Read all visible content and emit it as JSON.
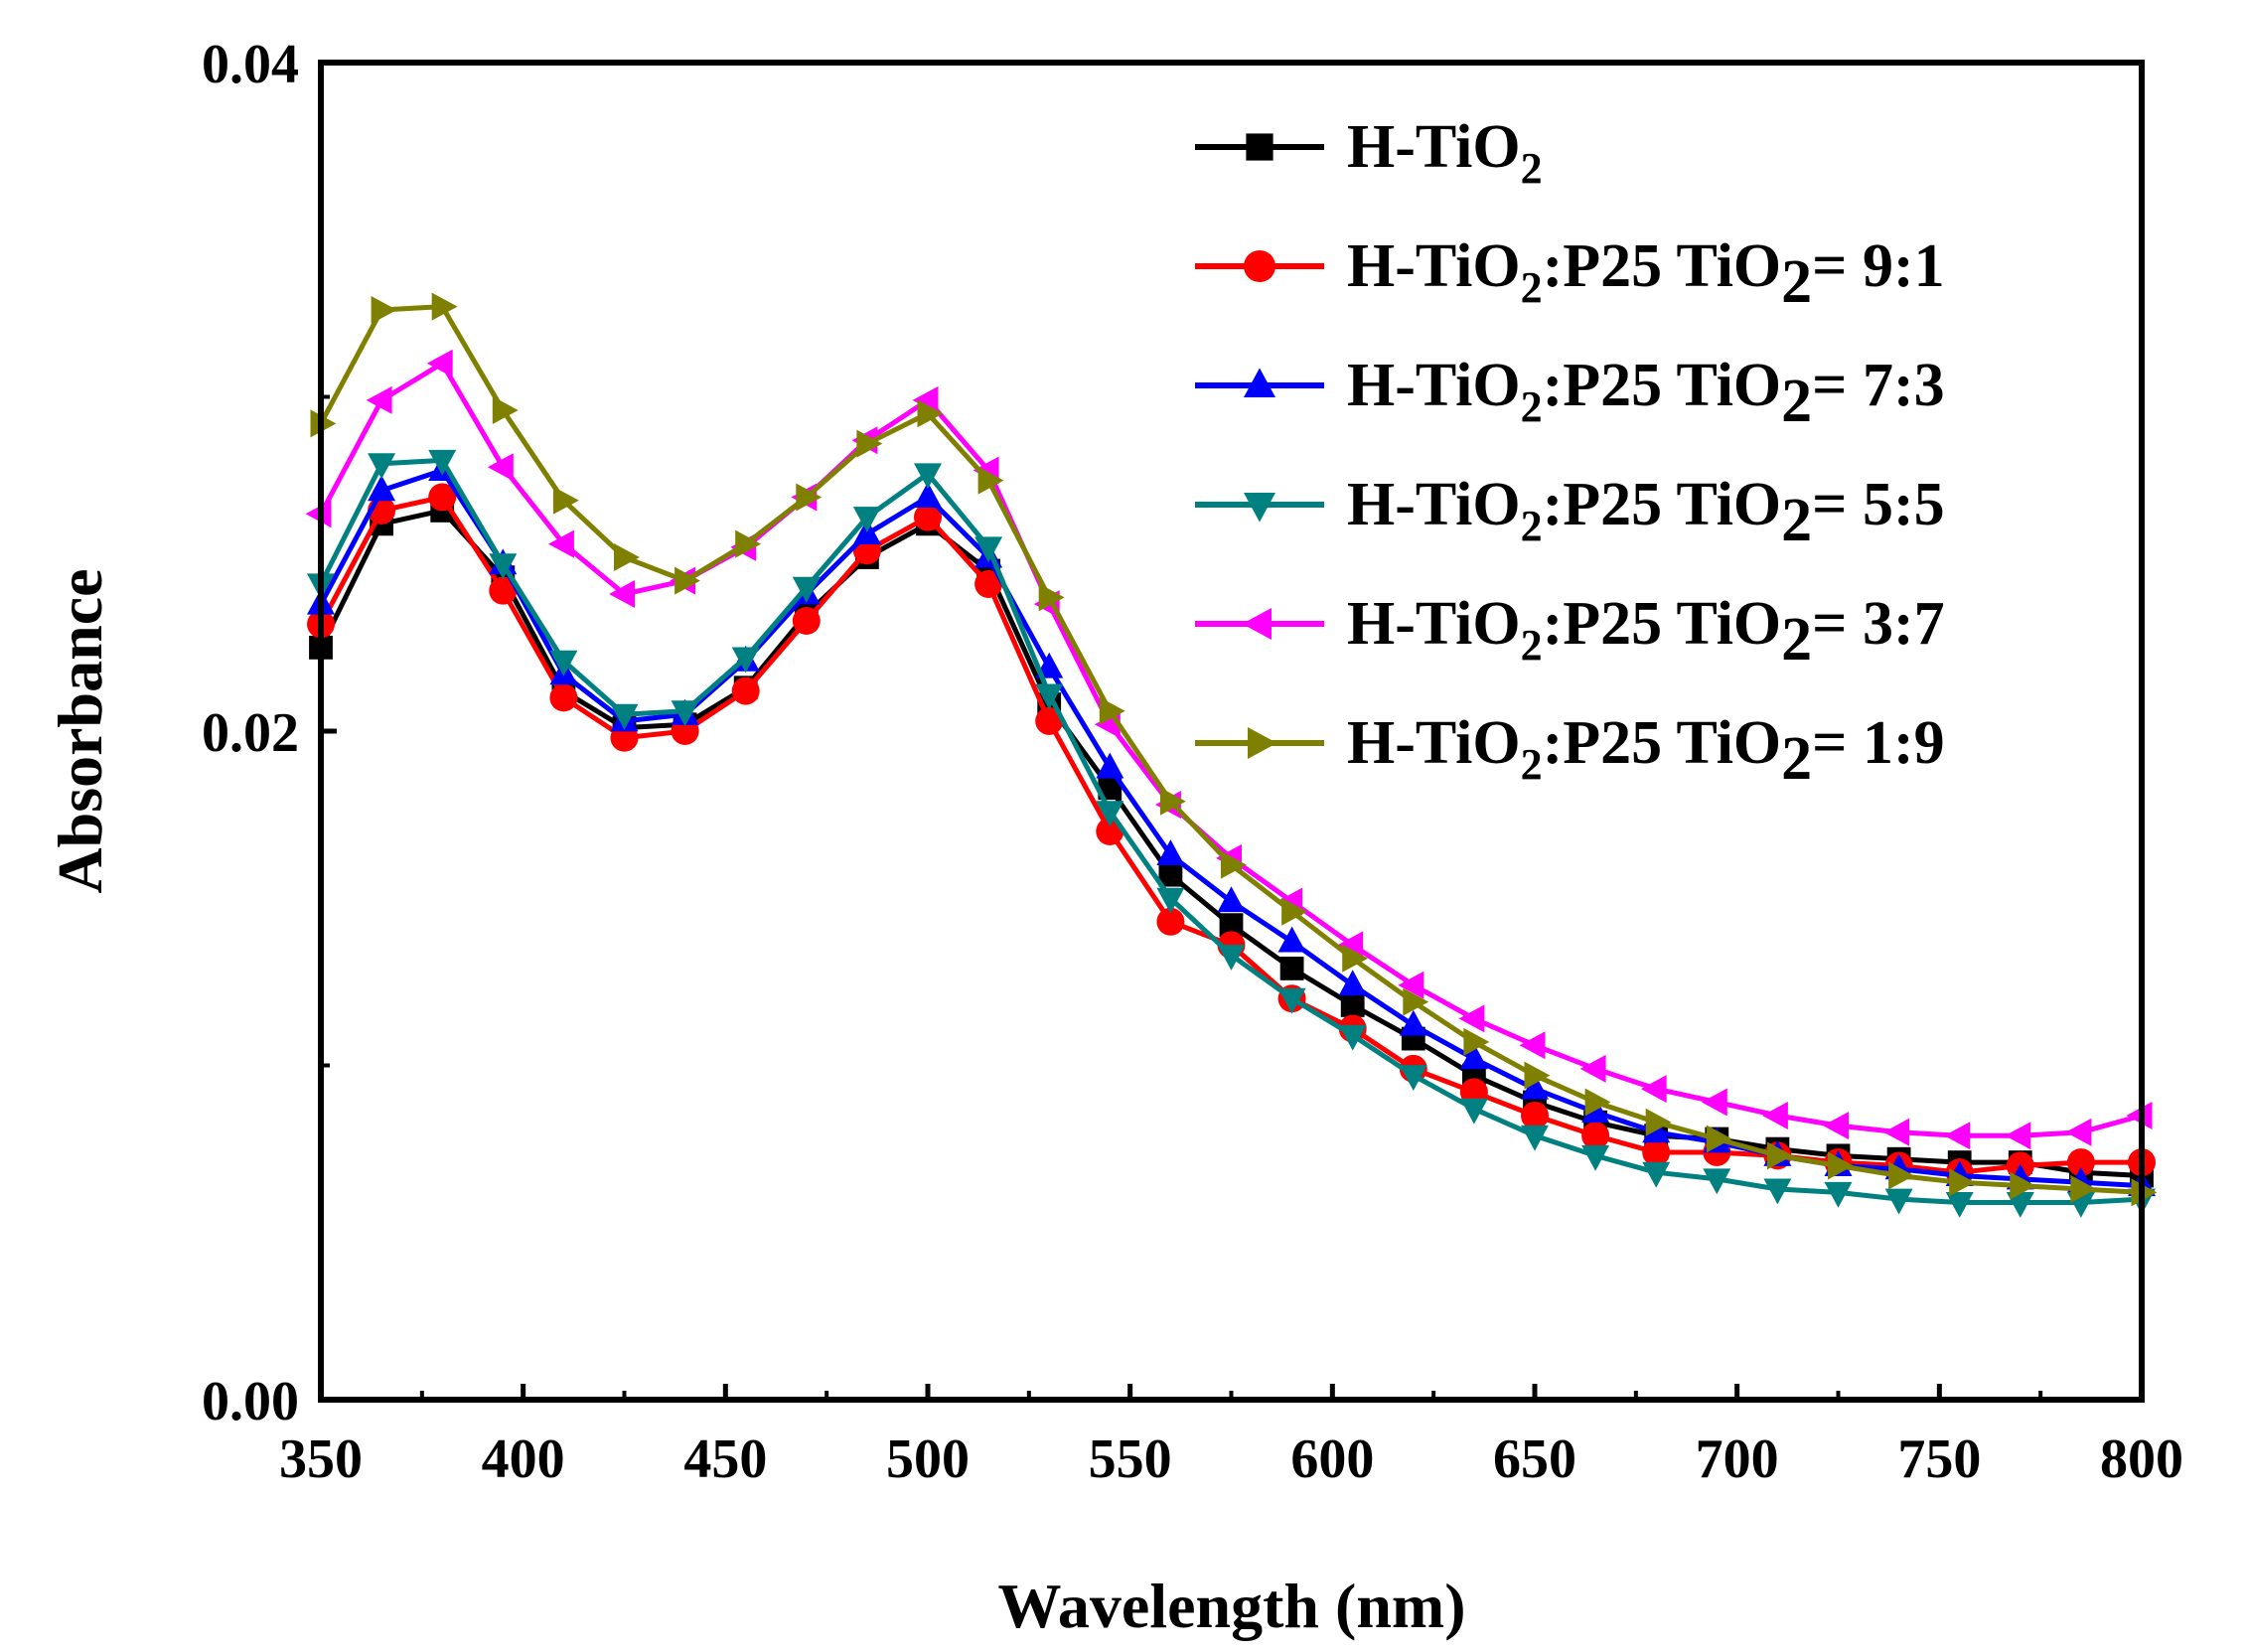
{
  "chart_data": {
    "type": "line",
    "title": "",
    "xlabel": "Wavelength (nm)",
    "ylabel": "Absorbance",
    "xlim": [
      350,
      800
    ],
    "ylim": [
      0.0,
      0.04
    ],
    "x_ticks": [
      "350",
      "400",
      "450",
      "500",
      "550",
      "600",
      "650",
      "700",
      "750",
      "800"
    ],
    "y_ticks": [
      "0.00",
      "0.02",
      "0.04"
    ],
    "legend_position": "top-right",
    "x": [
      350,
      365,
      380,
      395,
      410,
      425,
      440,
      455,
      470,
      485,
      500,
      515,
      530,
      545,
      560,
      575,
      590,
      605,
      620,
      635,
      650,
      665,
      680,
      695,
      710,
      725,
      740,
      755,
      770,
      785,
      800
    ],
    "series": [
      {
        "name": "H-TiO2",
        "legend_parts": {
          "prefix": "H-TiO",
          "sub": "2",
          "suffix": ""
        },
        "color": "#000000",
        "marker": "square",
        "values": [
          0.0225,
          0.0262,
          0.0266,
          0.0246,
          0.0212,
          0.0201,
          0.0202,
          0.0213,
          0.0235,
          0.0252,
          0.0262,
          0.0248,
          0.0208,
          0.0183,
          0.0157,
          0.0142,
          0.0129,
          0.0118,
          0.0108,
          0.0097,
          0.0089,
          0.0083,
          0.0079,
          0.0078,
          0.0075,
          0.0073,
          0.0072,
          0.0071,
          0.0071,
          0.0068,
          0.0067
        ]
      },
      {
        "name": "H-TiO2:P25 TiO2= 9:1",
        "legend_parts": {
          "prefix": "H-TiO",
          "sub": "2",
          "suffix": ":P25 TiO",
          "sub2": "2",
          "tail": "= 9:1"
        },
        "color": "#ff0000",
        "marker": "circle",
        "values": [
          0.0232,
          0.0266,
          0.027,
          0.0242,
          0.021,
          0.0198,
          0.02,
          0.0212,
          0.0233,
          0.0254,
          0.0264,
          0.0244,
          0.0203,
          0.017,
          0.0143,
          0.0136,
          0.012,
          0.0111,
          0.0099,
          0.0092,
          0.0085,
          0.0079,
          0.0074,
          0.0074,
          0.0073,
          0.0071,
          0.007,
          0.0068,
          0.007,
          0.0071,
          0.0071
        ]
      },
      {
        "name": "H-TiO2:P25 TiO2= 7:3",
        "legend_parts": {
          "prefix": "H-TiO",
          "sub": "2",
          "suffix": ":P25 TiO",
          "sub2": "2",
          "tail": "= 7:3"
        },
        "color": "#0000ff",
        "marker": "triangle-up",
        "values": [
          0.0238,
          0.0272,
          0.0278,
          0.025,
          0.0217,
          0.0203,
          0.0205,
          0.0221,
          0.0241,
          0.0259,
          0.027,
          0.0252,
          0.0219,
          0.0189,
          0.0163,
          0.0149,
          0.0137,
          0.0124,
          0.0112,
          0.0102,
          0.0093,
          0.0086,
          0.008,
          0.0077,
          0.0073,
          0.007,
          0.0069,
          0.0067,
          0.0066,
          0.0065,
          0.0064
        ]
      },
      {
        "name": "H-TiO2:P25 TiO2= 5:5",
        "legend_parts": {
          "prefix": "H-TiO",
          "sub": "2",
          "suffix": ":P25 TiO",
          "sub2": "2",
          "tail": "= 5:5"
        },
        "color": "#008080",
        "marker": "triangle-down",
        "values": [
          0.0244,
          0.028,
          0.0281,
          0.025,
          0.0221,
          0.0205,
          0.0206,
          0.0222,
          0.0243,
          0.0264,
          0.0277,
          0.0255,
          0.0211,
          0.0176,
          0.015,
          0.0133,
          0.012,
          0.0109,
          0.0097,
          0.0087,
          0.0079,
          0.0073,
          0.0068,
          0.0066,
          0.0063,
          0.0062,
          0.006,
          0.0059,
          0.0059,
          0.0059,
          0.006
        ]
      },
      {
        "name": "H-TiO2:P25 TiO2= 3:7",
        "legend_parts": {
          "prefix": "H-TiO",
          "sub": "2",
          "suffix": ":P25 TiO",
          "sub2": "2",
          "tail": "= 3:7"
        },
        "color": "#ff00ff",
        "marker": "triangle-left",
        "values": [
          0.0265,
          0.0299,
          0.031,
          0.0279,
          0.0256,
          0.0241,
          0.0245,
          0.0255,
          0.027,
          0.0287,
          0.0299,
          0.0278,
          0.0238,
          0.0202,
          0.0178,
          0.0162,
          0.0149,
          0.0136,
          0.0124,
          0.0114,
          0.0106,
          0.0099,
          0.0093,
          0.0089,
          0.0085,
          0.0082,
          0.008,
          0.0079,
          0.0079,
          0.008,
          0.0085
        ]
      },
      {
        "name": "H-TiO2:P25 TiO2= 1:9",
        "legend_parts": {
          "prefix": "H-TiO",
          "sub": "2",
          "suffix": ":P25 TiO",
          "sub2": "2",
          "tail": "= 1:9"
        },
        "color": "#808000",
        "marker": "triangle-right",
        "values": [
          0.0292,
          0.0326,
          0.0327,
          0.0296,
          0.0269,
          0.0252,
          0.0245,
          0.0256,
          0.027,
          0.0286,
          0.0295,
          0.0275,
          0.024,
          0.0206,
          0.0179,
          0.016,
          0.0146,
          0.0132,
          0.0119,
          0.0107,
          0.0097,
          0.0089,
          0.0083,
          0.0078,
          0.0073,
          0.007,
          0.0067,
          0.0065,
          0.0064,
          0.0063,
          0.0062
        ]
      }
    ]
  }
}
